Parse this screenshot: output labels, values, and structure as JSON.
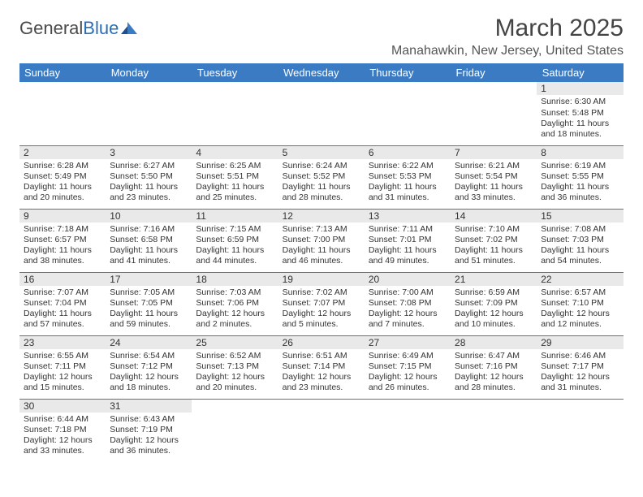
{
  "logo": {
    "text1": "General",
    "text2": "Blue"
  },
  "title": "March 2025",
  "location": "Manahawkin, New Jersey, United States",
  "weekdays": [
    "Sunday",
    "Monday",
    "Tuesday",
    "Wednesday",
    "Thursday",
    "Friday",
    "Saturday"
  ],
  "colors": {
    "header_bg": "#3b7bc4",
    "header_text": "#ffffff",
    "daynum_bg": "#e9e9e9",
    "border": "#3b7bc4",
    "text": "#333333",
    "background": "#ffffff"
  },
  "weeks": [
    [
      null,
      null,
      null,
      null,
      null,
      null,
      {
        "n": "1",
        "sunrise": "Sunrise: 6:30 AM",
        "sunset": "Sunset: 5:48 PM",
        "daylight1": "Daylight: 11 hours",
        "daylight2": "and 18 minutes."
      }
    ],
    [
      {
        "n": "2",
        "sunrise": "Sunrise: 6:28 AM",
        "sunset": "Sunset: 5:49 PM",
        "daylight1": "Daylight: 11 hours",
        "daylight2": "and 20 minutes."
      },
      {
        "n": "3",
        "sunrise": "Sunrise: 6:27 AM",
        "sunset": "Sunset: 5:50 PM",
        "daylight1": "Daylight: 11 hours",
        "daylight2": "and 23 minutes."
      },
      {
        "n": "4",
        "sunrise": "Sunrise: 6:25 AM",
        "sunset": "Sunset: 5:51 PM",
        "daylight1": "Daylight: 11 hours",
        "daylight2": "and 25 minutes."
      },
      {
        "n": "5",
        "sunrise": "Sunrise: 6:24 AM",
        "sunset": "Sunset: 5:52 PM",
        "daylight1": "Daylight: 11 hours",
        "daylight2": "and 28 minutes."
      },
      {
        "n": "6",
        "sunrise": "Sunrise: 6:22 AM",
        "sunset": "Sunset: 5:53 PM",
        "daylight1": "Daylight: 11 hours",
        "daylight2": "and 31 minutes."
      },
      {
        "n": "7",
        "sunrise": "Sunrise: 6:21 AM",
        "sunset": "Sunset: 5:54 PM",
        "daylight1": "Daylight: 11 hours",
        "daylight2": "and 33 minutes."
      },
      {
        "n": "8",
        "sunrise": "Sunrise: 6:19 AM",
        "sunset": "Sunset: 5:55 PM",
        "daylight1": "Daylight: 11 hours",
        "daylight2": "and 36 minutes."
      }
    ],
    [
      {
        "n": "9",
        "sunrise": "Sunrise: 7:18 AM",
        "sunset": "Sunset: 6:57 PM",
        "daylight1": "Daylight: 11 hours",
        "daylight2": "and 38 minutes."
      },
      {
        "n": "10",
        "sunrise": "Sunrise: 7:16 AM",
        "sunset": "Sunset: 6:58 PM",
        "daylight1": "Daylight: 11 hours",
        "daylight2": "and 41 minutes."
      },
      {
        "n": "11",
        "sunrise": "Sunrise: 7:15 AM",
        "sunset": "Sunset: 6:59 PM",
        "daylight1": "Daylight: 11 hours",
        "daylight2": "and 44 minutes."
      },
      {
        "n": "12",
        "sunrise": "Sunrise: 7:13 AM",
        "sunset": "Sunset: 7:00 PM",
        "daylight1": "Daylight: 11 hours",
        "daylight2": "and 46 minutes."
      },
      {
        "n": "13",
        "sunrise": "Sunrise: 7:11 AM",
        "sunset": "Sunset: 7:01 PM",
        "daylight1": "Daylight: 11 hours",
        "daylight2": "and 49 minutes."
      },
      {
        "n": "14",
        "sunrise": "Sunrise: 7:10 AM",
        "sunset": "Sunset: 7:02 PM",
        "daylight1": "Daylight: 11 hours",
        "daylight2": "and 51 minutes."
      },
      {
        "n": "15",
        "sunrise": "Sunrise: 7:08 AM",
        "sunset": "Sunset: 7:03 PM",
        "daylight1": "Daylight: 11 hours",
        "daylight2": "and 54 minutes."
      }
    ],
    [
      {
        "n": "16",
        "sunrise": "Sunrise: 7:07 AM",
        "sunset": "Sunset: 7:04 PM",
        "daylight1": "Daylight: 11 hours",
        "daylight2": "and 57 minutes."
      },
      {
        "n": "17",
        "sunrise": "Sunrise: 7:05 AM",
        "sunset": "Sunset: 7:05 PM",
        "daylight1": "Daylight: 11 hours",
        "daylight2": "and 59 minutes."
      },
      {
        "n": "18",
        "sunrise": "Sunrise: 7:03 AM",
        "sunset": "Sunset: 7:06 PM",
        "daylight1": "Daylight: 12 hours",
        "daylight2": "and 2 minutes."
      },
      {
        "n": "19",
        "sunrise": "Sunrise: 7:02 AM",
        "sunset": "Sunset: 7:07 PM",
        "daylight1": "Daylight: 12 hours",
        "daylight2": "and 5 minutes."
      },
      {
        "n": "20",
        "sunrise": "Sunrise: 7:00 AM",
        "sunset": "Sunset: 7:08 PM",
        "daylight1": "Daylight: 12 hours",
        "daylight2": "and 7 minutes."
      },
      {
        "n": "21",
        "sunrise": "Sunrise: 6:59 AM",
        "sunset": "Sunset: 7:09 PM",
        "daylight1": "Daylight: 12 hours",
        "daylight2": "and 10 minutes."
      },
      {
        "n": "22",
        "sunrise": "Sunrise: 6:57 AM",
        "sunset": "Sunset: 7:10 PM",
        "daylight1": "Daylight: 12 hours",
        "daylight2": "and 12 minutes."
      }
    ],
    [
      {
        "n": "23",
        "sunrise": "Sunrise: 6:55 AM",
        "sunset": "Sunset: 7:11 PM",
        "daylight1": "Daylight: 12 hours",
        "daylight2": "and 15 minutes."
      },
      {
        "n": "24",
        "sunrise": "Sunrise: 6:54 AM",
        "sunset": "Sunset: 7:12 PM",
        "daylight1": "Daylight: 12 hours",
        "daylight2": "and 18 minutes."
      },
      {
        "n": "25",
        "sunrise": "Sunrise: 6:52 AM",
        "sunset": "Sunset: 7:13 PM",
        "daylight1": "Daylight: 12 hours",
        "daylight2": "and 20 minutes."
      },
      {
        "n": "26",
        "sunrise": "Sunrise: 6:51 AM",
        "sunset": "Sunset: 7:14 PM",
        "daylight1": "Daylight: 12 hours",
        "daylight2": "and 23 minutes."
      },
      {
        "n": "27",
        "sunrise": "Sunrise: 6:49 AM",
        "sunset": "Sunset: 7:15 PM",
        "daylight1": "Daylight: 12 hours",
        "daylight2": "and 26 minutes."
      },
      {
        "n": "28",
        "sunrise": "Sunrise: 6:47 AM",
        "sunset": "Sunset: 7:16 PM",
        "daylight1": "Daylight: 12 hours",
        "daylight2": "and 28 minutes."
      },
      {
        "n": "29",
        "sunrise": "Sunrise: 6:46 AM",
        "sunset": "Sunset: 7:17 PM",
        "daylight1": "Daylight: 12 hours",
        "daylight2": "and 31 minutes."
      }
    ],
    [
      {
        "n": "30",
        "sunrise": "Sunrise: 6:44 AM",
        "sunset": "Sunset: 7:18 PM",
        "daylight1": "Daylight: 12 hours",
        "daylight2": "and 33 minutes."
      },
      {
        "n": "31",
        "sunrise": "Sunrise: 6:43 AM",
        "sunset": "Sunset: 7:19 PM",
        "daylight1": "Daylight: 12 hours",
        "daylight2": "and 36 minutes."
      },
      null,
      null,
      null,
      null,
      null
    ]
  ]
}
